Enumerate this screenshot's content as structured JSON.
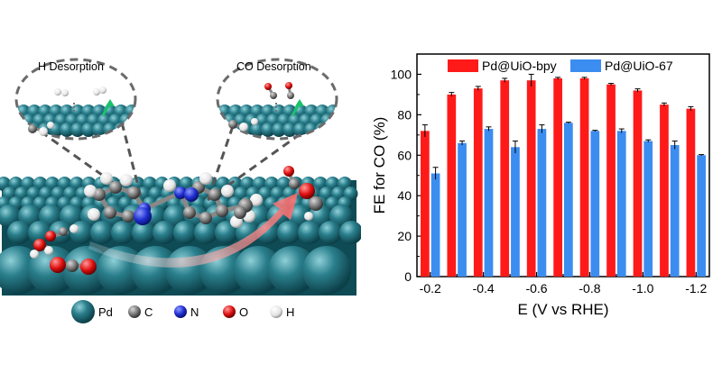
{
  "illustration": {
    "callout_left_title": "H Desorption",
    "callout_right_title": "CO Desorption",
    "legend": [
      {
        "symbol": "Pd",
        "color": "#1d6a78"
      },
      {
        "symbol": "C",
        "color": "#7a7a7a"
      },
      {
        "symbol": "N",
        "color": "#1f2fd0"
      },
      {
        "symbol": "O",
        "color": "#e01010"
      },
      {
        "symbol": "H",
        "color": "#f2f2f2"
      }
    ]
  },
  "chart_data": {
    "type": "bar",
    "xlabel": "E (V vs RHE)",
    "ylabel": "FE for CO (%)",
    "ylim": [
      0,
      110
    ],
    "yticks": [
      0,
      20,
      40,
      60,
      80,
      100
    ],
    "x": [
      -0.2,
      -0.3,
      -0.4,
      -0.5,
      -0.6,
      -0.7,
      -0.8,
      -0.9,
      -1.0,
      -1.1,
      -1.2
    ],
    "xticks": [
      {
        "value": -0.2,
        "label": "-0.2"
      },
      {
        "value": -0.4,
        "label": "-0.4"
      },
      {
        "value": -0.6,
        "label": "-0.6"
      },
      {
        "value": -0.8,
        "label": "-0.8"
      },
      {
        "value": -1.0,
        "label": "-1.0"
      },
      {
        "value": -1.2,
        "label": "-1.2"
      }
    ],
    "series": [
      {
        "name": "Pd@UiO-bpy",
        "color": "#ff1a1a",
        "values": [
          72,
          90,
          93,
          97,
          97,
          98,
          98,
          95,
          92,
          85,
          83
        ],
        "errors": [
          3,
          1,
          1,
          1,
          3,
          0.5,
          0.5,
          0.5,
          0.8,
          0.8,
          1
        ]
      },
      {
        "name": "Pd@UiO-67",
        "color": "#3b8df0",
        "values": [
          51,
          66,
          73,
          64,
          73,
          76,
          72,
          72,
          67,
          65,
          60
        ],
        "errors": [
          3,
          1,
          1,
          3,
          2,
          0.3,
          0.3,
          1,
          0.6,
          2,
          0.3
        ]
      }
    ],
    "legend_position": "top",
    "grid": false
  }
}
